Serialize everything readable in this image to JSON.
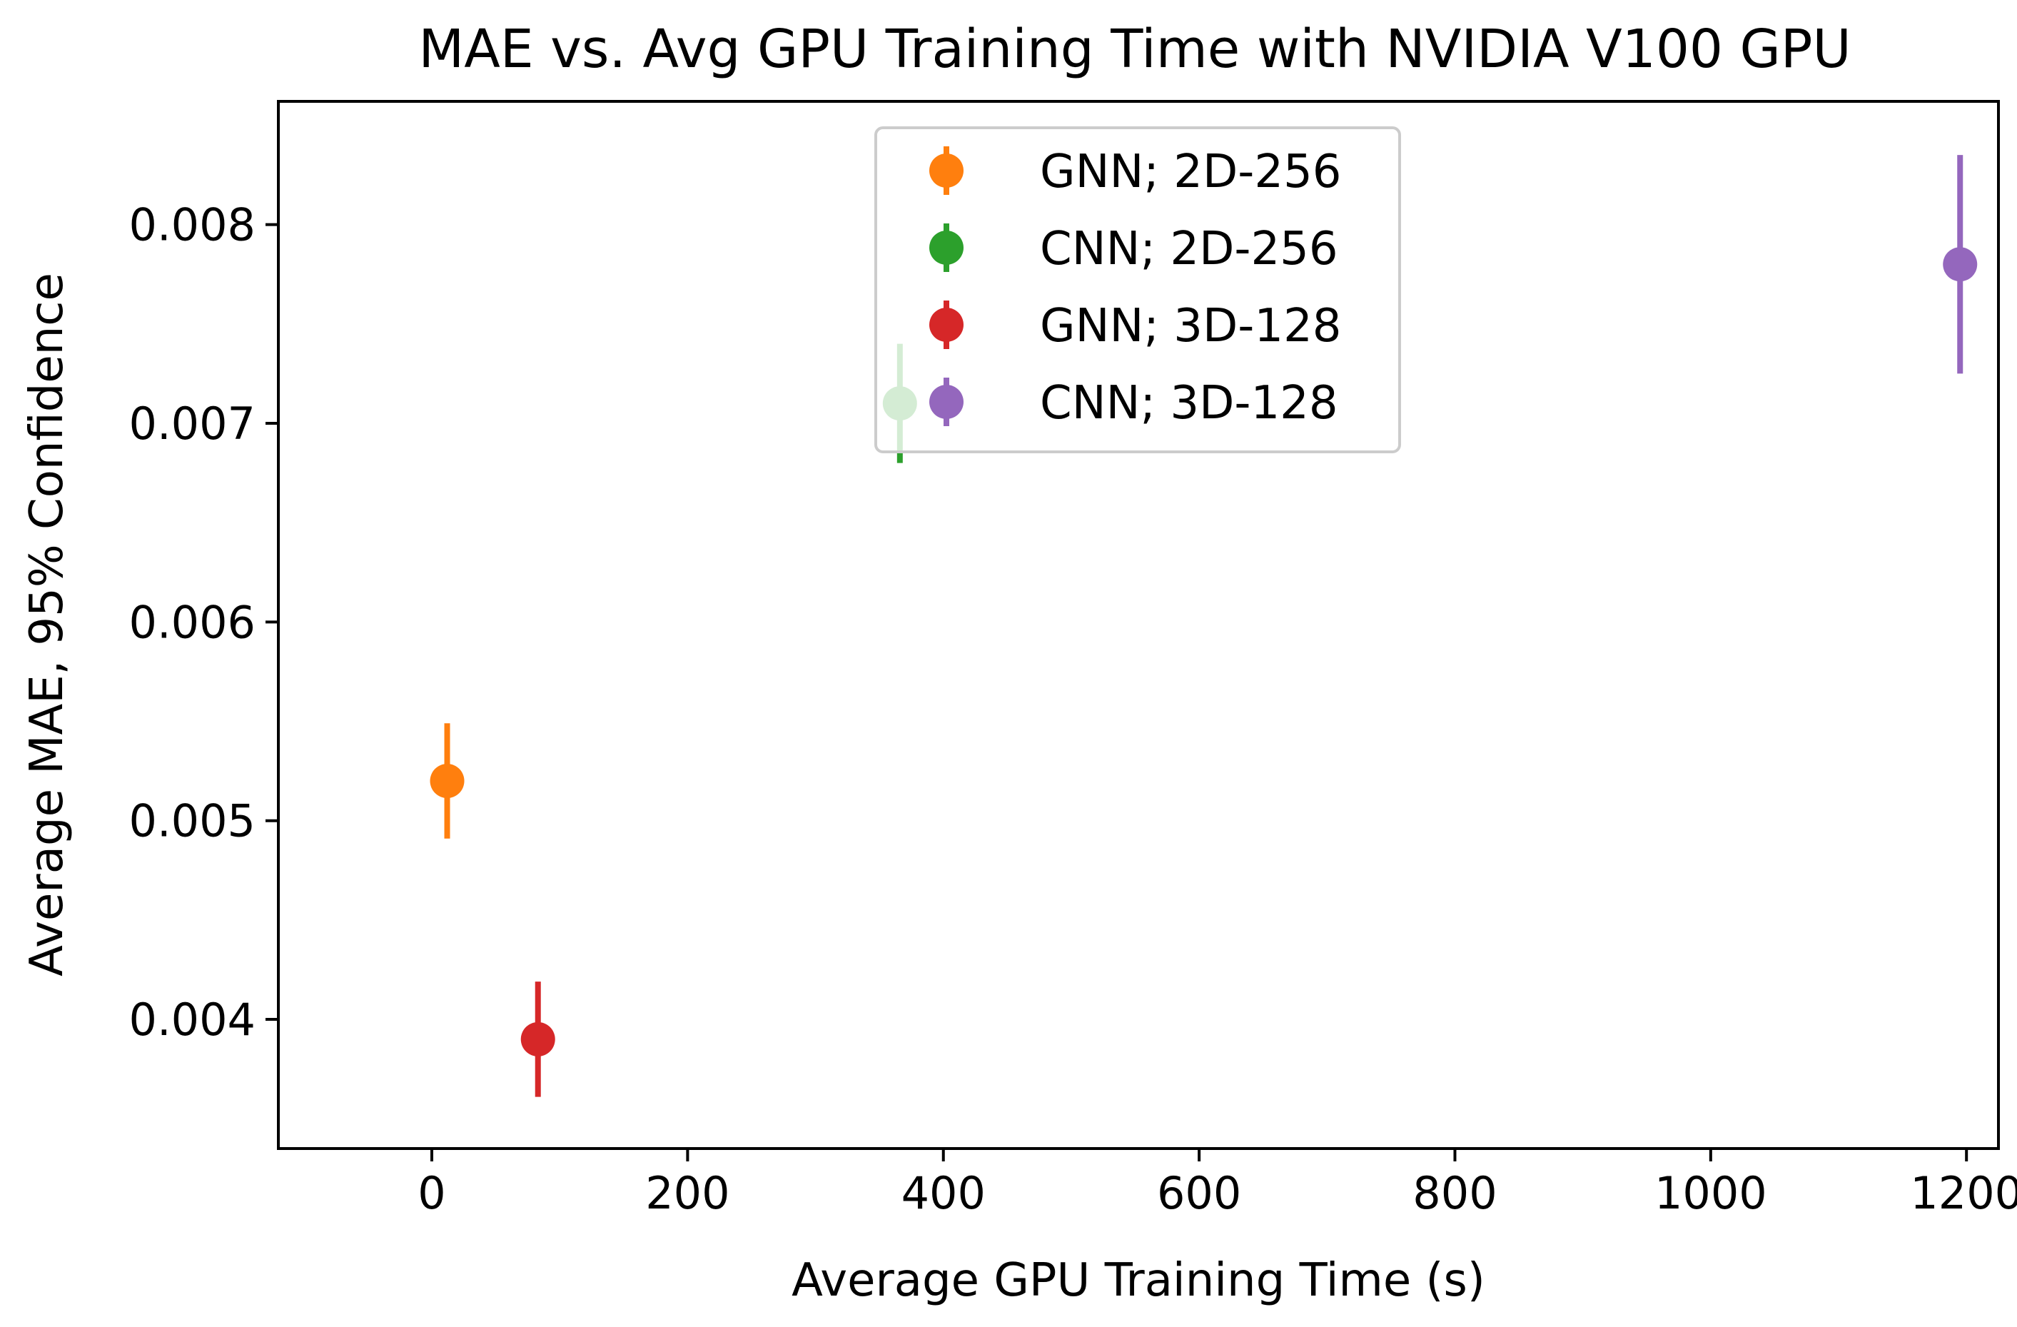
{
  "chart_data": {
    "type": "scatter",
    "title": "MAE vs. Avg GPU Training Time with NVIDIA V100 GPU",
    "xlabel": "Average GPU Training Time (s)",
    "ylabel": "Average MAE, 95% Confidence",
    "xlim": [
      -120,
      1225
    ],
    "ylim": [
      0.00335,
      0.00862
    ],
    "xticks": [
      {
        "value": 0,
        "label": "0"
      },
      {
        "value": 200,
        "label": "200"
      },
      {
        "value": 400,
        "label": "400"
      },
      {
        "value": 600,
        "label": "600"
      },
      {
        "value": 800,
        "label": "800"
      },
      {
        "value": 1000,
        "label": "1000"
      },
      {
        "value": 1200,
        "label": "1200"
      }
    ],
    "yticks": [
      {
        "value": 0.004,
        "label": "0.004"
      },
      {
        "value": 0.005,
        "label": "0.005"
      },
      {
        "value": 0.006,
        "label": "0.006"
      },
      {
        "value": 0.007,
        "label": "0.007"
      },
      {
        "value": 0.008,
        "label": "0.008"
      }
    ],
    "legend_position": "upper-center",
    "series": [
      {
        "name": "GNN; 2D-256",
        "color": "#ff7f0e",
        "x": 12,
        "y": 0.0052,
        "yerr_low": 0.00491,
        "yerr_high": 0.00549
      },
      {
        "name": "CNN; 2D-256",
        "color": "#2ca02c",
        "x": 366,
        "y": 0.0071,
        "yerr_low": 0.0068,
        "yerr_high": 0.0074
      },
      {
        "name": "GNN; 3D-128",
        "color": "#d62728",
        "x": 83,
        "y": 0.0039,
        "yerr_low": 0.00361,
        "yerr_high": 0.00419
      },
      {
        "name": "CNN; 3D-128",
        "color": "#9467bd",
        "x": 1195,
        "y": 0.0078,
        "yerr_low": 0.00725,
        "yerr_high": 0.00835
      }
    ]
  }
}
